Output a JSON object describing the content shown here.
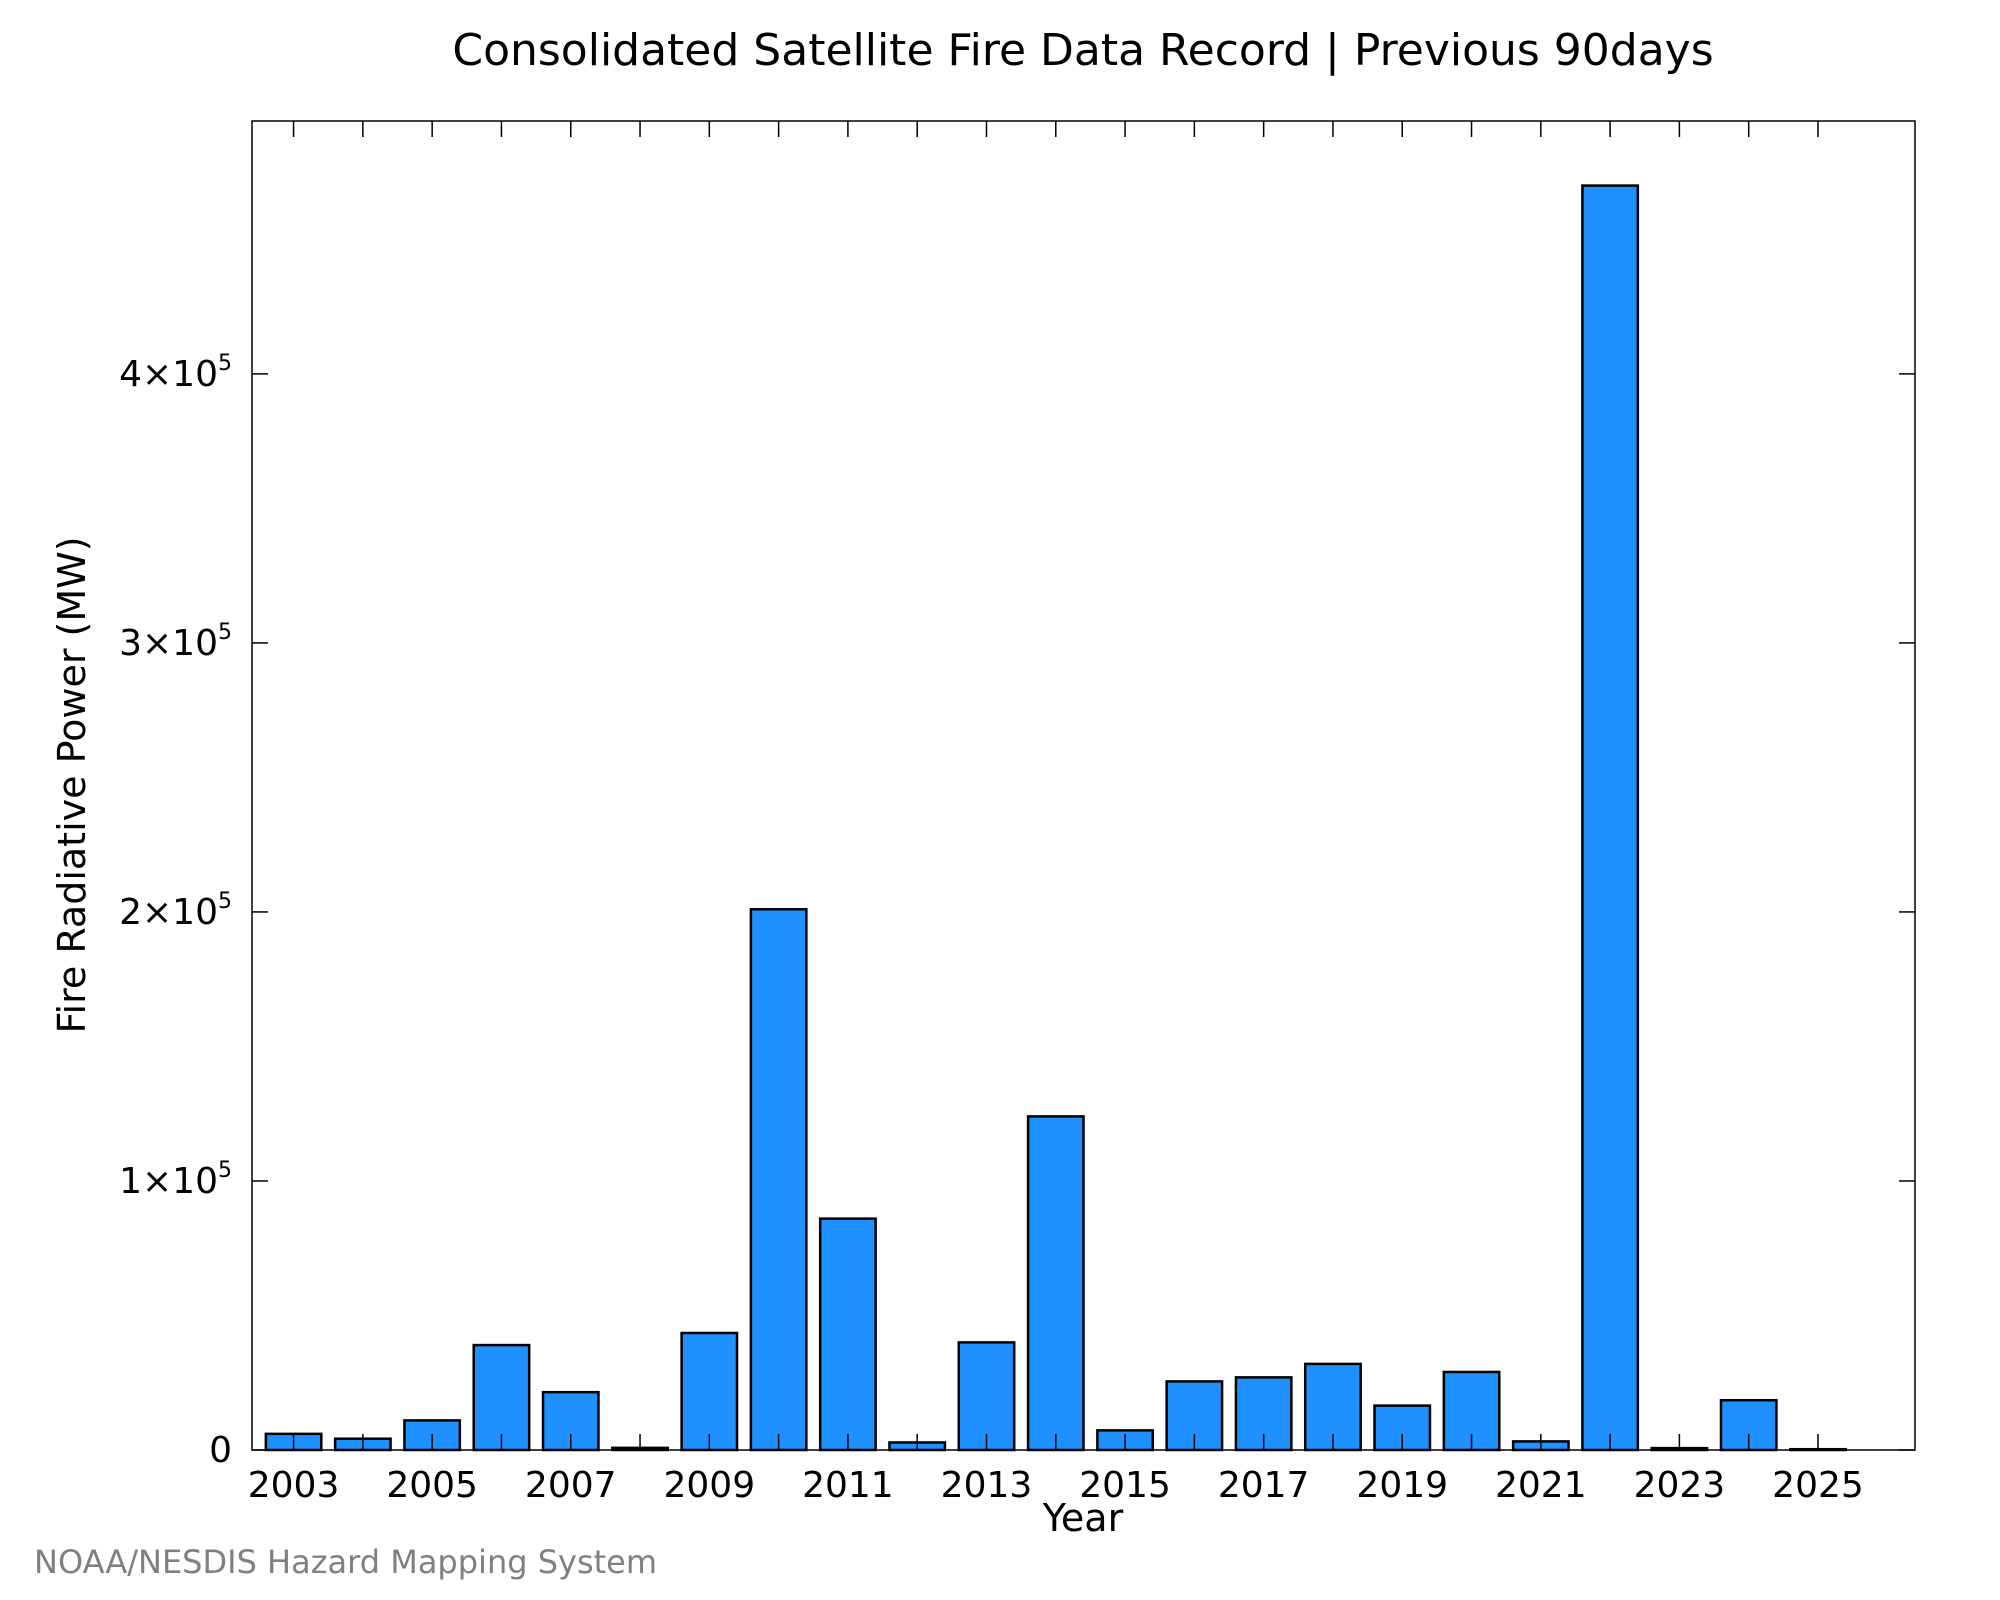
{
  "chart_data": {
    "type": "bar",
    "title": "Consolidated Satellite Fire Data Record | Previous 90days",
    "xlabel": "Year",
    "ylabel": "Fire Radiative Power (MW)",
    "categories": [
      "2003",
      "2004",
      "2005",
      "2006",
      "2007",
      "2008",
      "2009",
      "2010",
      "2011",
      "2012",
      "2013",
      "2014",
      "2015",
      "2016",
      "2017",
      "2018",
      "2019",
      "2020",
      "2021",
      "2022",
      "2023",
      "2024",
      "2025"
    ],
    "values": [
      6000,
      4200,
      11000,
      39000,
      21500,
      800,
      43500,
      201000,
      86000,
      2800,
      40000,
      124000,
      7300,
      25500,
      27000,
      32000,
      16500,
      29000,
      3200,
      470000,
      700,
      18500,
      300
    ],
    "x_tick_labels": [
      "2003",
      "2005",
      "2007",
      "2009",
      "2011",
      "2013",
      "2015",
      "2017",
      "2019",
      "2021",
      "2023",
      "2025"
    ],
    "y_ticks": [
      {
        "value": 0,
        "mantissa": "0",
        "exp": ""
      },
      {
        "value": 100000,
        "mantissa": "1×10",
        "exp": "5"
      },
      {
        "value": 200000,
        "mantissa": "2×10",
        "exp": "5"
      },
      {
        "value": 300000,
        "mantissa": "3×10",
        "exp": "5"
      },
      {
        "value": 400000,
        "mantissa": "4×10",
        "exp": "5"
      }
    ],
    "ylim": [
      0,
      494000
    ],
    "xlim": [
      2002.4,
      2026.4
    ],
    "bar_color": "#1e90ff",
    "edge_color": "#000000",
    "grid": false,
    "legend": "none"
  },
  "footer": {
    "credit": "NOAA/NESDIS Hazard Mapping System"
  }
}
